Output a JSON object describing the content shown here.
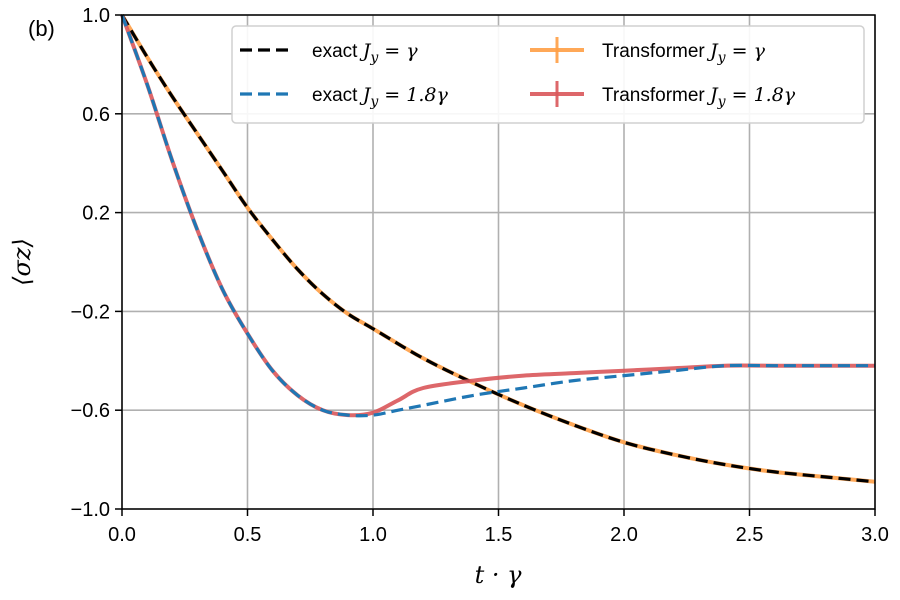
{
  "chart_data": {
    "type": "line",
    "panel_label": "(b)",
    "xlabel": "t · γ",
    "ylabel": "⟨σz⟩",
    "xlim": [
      0.0,
      3.0
    ],
    "ylim": [
      -1.0,
      1.0
    ],
    "xticks": [
      0.0,
      0.5,
      1.0,
      1.5,
      2.0,
      2.5,
      3.0
    ],
    "xtick_labels": [
      "0.0",
      "0.5",
      "1.0",
      "1.5",
      "2.0",
      "2.5",
      "3.0"
    ],
    "yticks": [
      1.0,
      0.6,
      0.2,
      -0.2,
      -0.6,
      -1.0
    ],
    "ytick_labels": [
      "1.0",
      "0.6",
      "0.2",
      "−0.2",
      "−0.6",
      "−1.0"
    ],
    "grid": true,
    "legend_position": "top-right",
    "legend_columns": 2,
    "colors": {
      "exact_Jy_gamma": "#000000",
      "exact_Jy_1_8gamma": "#1f77b4",
      "transformer_Jy_gamma": "#ff9f45",
      "transformer_Jy_1_8gamma": "#d9575a"
    },
    "series": [
      {
        "key": "transformer_Jy_gamma",
        "name": "Transformer J_y = γ",
        "legend_prefix": "Transformer ",
        "legend_math": "J_y = γ",
        "style": "solid",
        "x": [
          0.0,
          0.1,
          0.2,
          0.3,
          0.4,
          0.5,
          0.6,
          0.7,
          0.8,
          0.9,
          1.0,
          1.2,
          1.4,
          1.6,
          1.8,
          2.0,
          2.2,
          2.4,
          2.6,
          2.8,
          3.0
        ],
        "y": [
          1.0,
          0.83,
          0.67,
          0.52,
          0.37,
          0.22,
          0.09,
          -0.03,
          -0.13,
          -0.21,
          -0.27,
          -0.39,
          -0.49,
          -0.58,
          -0.66,
          -0.73,
          -0.78,
          -0.82,
          -0.85,
          -0.87,
          -0.89
        ]
      },
      {
        "key": "exact_Jy_gamma",
        "name": "exact J_y = γ",
        "legend_prefix": "exact ",
        "legend_math": "J_y = γ",
        "style": "dashed",
        "x": [
          0.0,
          0.1,
          0.2,
          0.3,
          0.4,
          0.5,
          0.6,
          0.7,
          0.8,
          0.9,
          1.0,
          1.2,
          1.4,
          1.6,
          1.8,
          2.0,
          2.2,
          2.4,
          2.6,
          2.8,
          3.0
        ],
        "y": [
          1.0,
          0.83,
          0.67,
          0.52,
          0.37,
          0.22,
          0.09,
          -0.03,
          -0.13,
          -0.21,
          -0.27,
          -0.39,
          -0.49,
          -0.58,
          -0.66,
          -0.73,
          -0.78,
          -0.82,
          -0.85,
          -0.87,
          -0.89
        ]
      },
      {
        "key": "transformer_Jy_1_8gamma",
        "name": "Transformer J_y = 1.8γ",
        "legend_prefix": "Transformer ",
        "legend_math": "J_y = 1.8γ",
        "style": "solid",
        "x": [
          0.0,
          0.1,
          0.2,
          0.3,
          0.4,
          0.5,
          0.6,
          0.7,
          0.8,
          0.9,
          1.0,
          1.1,
          1.2,
          1.4,
          1.6,
          1.8,
          2.0,
          2.2,
          2.4,
          2.6,
          2.8,
          3.0
        ],
        "y": [
          1.0,
          0.72,
          0.41,
          0.13,
          -0.11,
          -0.29,
          -0.44,
          -0.54,
          -0.6,
          -0.62,
          -0.61,
          -0.56,
          -0.51,
          -0.48,
          -0.46,
          -0.45,
          -0.44,
          -0.43,
          -0.42,
          -0.42,
          -0.42,
          -0.42
        ]
      },
      {
        "key": "exact_Jy_1_8gamma",
        "name": "exact J_y = 1.8γ",
        "legend_prefix": "exact ",
        "legend_math": "J_y = 1.8γ",
        "style": "dashed",
        "x": [
          0.0,
          0.1,
          0.2,
          0.3,
          0.4,
          0.5,
          0.6,
          0.7,
          0.8,
          0.9,
          1.0,
          1.1,
          1.2,
          1.4,
          1.6,
          1.8,
          2.0,
          2.2,
          2.4,
          2.6,
          2.8,
          3.0
        ],
        "y": [
          1.0,
          0.72,
          0.41,
          0.13,
          -0.11,
          -0.29,
          -0.44,
          -0.54,
          -0.6,
          -0.62,
          -0.62,
          -0.6,
          -0.58,
          -0.54,
          -0.51,
          -0.48,
          -0.46,
          -0.44,
          -0.42,
          -0.42,
          -0.42,
          -0.42
        ]
      }
    ],
    "legend_order": [
      "exact_Jy_gamma",
      "exact_Jy_1_8gamma",
      "transformer_Jy_gamma",
      "transformer_Jy_1_8gamma"
    ]
  }
}
